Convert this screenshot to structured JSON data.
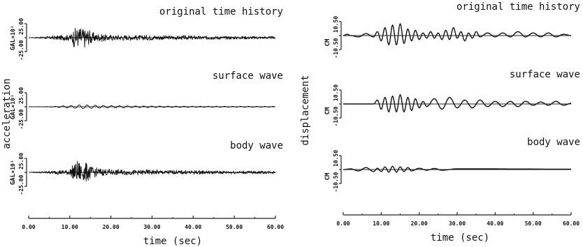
{
  "figure": {
    "left_ylabel": "acceleration",
    "right_ylabel": "displacement",
    "xlabel": "time (sec)"
  },
  "chart_data": [
    {
      "type": "line",
      "column": "left",
      "title": "original time history",
      "ylabel": "GAL",
      "yscale_label": "×10¹",
      "y_ticks": [
        "25.00",
        "-25.00"
      ],
      "ylim": [
        -25,
        25
      ],
      "x_ticks": [
        "0.00",
        "10.00",
        "20.00",
        "30.00",
        "40.00",
        "50.00",
        "60.00"
      ],
      "xlim": [
        0,
        60
      ],
      "xlabel": "time (sec)",
      "series": [
        {
          "values": [
            [
              0,
              0
            ],
            [
              5,
              3
            ],
            [
              10,
              6
            ],
            [
              11,
              18
            ],
            [
              12,
              22
            ],
            [
              13,
              20
            ],
            [
              14,
              19
            ],
            [
              15,
              14
            ],
            [
              16,
              9
            ],
            [
              18,
              7
            ],
            [
              20,
              6
            ],
            [
              25,
              5
            ],
            [
              30,
              5
            ],
            [
              35,
              4
            ],
            [
              40,
              4
            ],
            [
              45,
              3.5
            ],
            [
              50,
              3
            ],
            [
              55,
              3
            ],
            [
              60,
              2.5
            ]
          ]
        }
      ]
    },
    {
      "type": "line",
      "column": "left",
      "title": "surface wave",
      "ylabel": "GAL",
      "yscale_label": "×10¹",
      "y_ticks": [
        "25.00",
        "-25.00"
      ],
      "ylim": [
        -25,
        25
      ],
      "x_ticks": [
        "0.00",
        "10.00",
        "20.00",
        "30.00",
        "40.00",
        "50.00",
        "60.00"
      ],
      "xlim": [
        0,
        60
      ],
      "xlabel": "time (sec)",
      "series": [
        {
          "values": [
            [
              0,
              0
            ],
            [
              6,
              0.5
            ],
            [
              8,
              1.5
            ],
            [
              10,
              2
            ],
            [
              12,
              3
            ],
            [
              13,
              3.5
            ],
            [
              15,
              3
            ],
            [
              17,
              2.5
            ],
            [
              20,
              2
            ],
            [
              25,
              1.5
            ],
            [
              30,
              1.2
            ],
            [
              40,
              1
            ],
            [
              50,
              0.8
            ],
            [
              60,
              0.7
            ]
          ]
        }
      ]
    },
    {
      "type": "line",
      "column": "left",
      "title": "body wave",
      "ylabel": "GAL",
      "yscale_label": "×10¹",
      "y_ticks": [
        "25.00",
        "-25.00"
      ],
      "ylim": [
        -25,
        25
      ],
      "x_ticks": [
        "0.00",
        "10.00",
        "20.00",
        "30.00",
        "40.00",
        "50.00",
        "60.00"
      ],
      "xlim": [
        0,
        60
      ],
      "xlabel": "time (sec)",
      "series": [
        {
          "values": [
            [
              0,
              0
            ],
            [
              5,
              3
            ],
            [
              10,
              6
            ],
            [
              11,
              18
            ],
            [
              12,
              21
            ],
            [
              13,
              20
            ],
            [
              14,
              19
            ],
            [
              15,
              14
            ],
            [
              16,
              9
            ],
            [
              18,
              7
            ],
            [
              20,
              6
            ],
            [
              25,
              5
            ],
            [
              30,
              5
            ],
            [
              35,
              4
            ],
            [
              40,
              4
            ],
            [
              45,
              3.5
            ],
            [
              50,
              3
            ],
            [
              55,
              3
            ],
            [
              60,
              2.5
            ]
          ]
        }
      ]
    },
    {
      "type": "line",
      "column": "right",
      "title": "original time history",
      "ylabel": "CM",
      "y_ticks": [
        "10.50",
        "-10.50"
      ],
      "ylim": [
        -10.5,
        10.5
      ],
      "x_ticks": [
        "0.00",
        "10.00",
        "20.00",
        "30.00",
        "40.00",
        "50.00",
        "60.00"
      ],
      "xlim": [
        0,
        60
      ],
      "xlabel": "time (sec)",
      "series": [
        {
          "values": [
            [
              0,
              0
            ],
            [
              1,
              1
            ],
            [
              2,
              0
            ],
            [
              4,
              -1
            ],
            [
              6,
              1.5
            ],
            [
              8,
              -1
            ],
            [
              9,
              3
            ],
            [
              10,
              -4
            ],
            [
              11,
              6
            ],
            [
              12,
              -7
            ],
            [
              13,
              8
            ],
            [
              14,
              -7
            ],
            [
              15,
              9
            ],
            [
              16,
              -6
            ],
            [
              17,
              5
            ],
            [
              18,
              -4
            ],
            [
              19,
              4
            ],
            [
              20,
              -3
            ],
            [
              21,
              2
            ],
            [
              22,
              -2
            ],
            [
              23,
              3
            ],
            [
              24,
              -2
            ],
            [
              25,
              2
            ],
            [
              26,
              -3
            ],
            [
              27,
              4
            ],
            [
              28,
              -3
            ],
            [
              29,
              6
            ],
            [
              30,
              -2
            ],
            [
              31,
              3
            ],
            [
              32,
              -4
            ],
            [
              33,
              2
            ],
            [
              34,
              -2
            ],
            [
              35,
              3
            ],
            [
              36,
              -1
            ],
            [
              38,
              2
            ],
            [
              40,
              -1
            ],
            [
              42,
              2
            ],
            [
              44,
              -1
            ],
            [
              46,
              3
            ],
            [
              48,
              -1
            ],
            [
              50,
              2
            ],
            [
              52,
              -1
            ],
            [
              54,
              2
            ],
            [
              56,
              -1
            ],
            [
              58,
              1
            ],
            [
              60,
              0
            ]
          ]
        }
      ]
    },
    {
      "type": "line",
      "column": "right",
      "title": "surface wave",
      "ylabel": "CM",
      "y_ticks": [
        "10.50",
        "-10.50"
      ],
      "ylim": [
        -10.5,
        10.5
      ],
      "x_ticks": [
        "0.00",
        "10.00",
        "20.00",
        "30.00",
        "40.00",
        "50.00",
        "60.00"
      ],
      "xlim": [
        0,
        60
      ],
      "xlabel": "time (sec)",
      "series": [
        {
          "values": [
            [
              0,
              0
            ],
            [
              8,
              0
            ],
            [
              9,
              3
            ],
            [
              10,
              -4
            ],
            [
              11,
              5
            ],
            [
              12,
              -6
            ],
            [
              13,
              6
            ],
            [
              14,
              -6
            ],
            [
              15,
              7
            ],
            [
              16,
              -6
            ],
            [
              17,
              5
            ],
            [
              18,
              -5
            ],
            [
              19,
              4
            ],
            [
              20,
              -3
            ],
            [
              21,
              2
            ],
            [
              22,
              -2
            ],
            [
              24,
              4
            ],
            [
              26,
              -4
            ],
            [
              28,
              5
            ],
            [
              30,
              -3
            ],
            [
              32,
              3
            ],
            [
              34,
              -3
            ],
            [
              36,
              3
            ],
            [
              38,
              -2
            ],
            [
              40,
              2
            ],
            [
              42,
              -2
            ],
            [
              44,
              2
            ],
            [
              46,
              -2
            ],
            [
              48,
              2
            ],
            [
              50,
              -1
            ],
            [
              52,
              1.5
            ],
            [
              54,
              -1
            ],
            [
              56,
              2
            ],
            [
              58,
              -1
            ],
            [
              60,
              0.5
            ]
          ]
        }
      ]
    },
    {
      "type": "line",
      "column": "right",
      "title": "body wave",
      "ylabel": "CM",
      "y_ticks": [
        "10.50",
        "-10.50"
      ],
      "ylim": [
        -10.5,
        10.5
      ],
      "x_ticks": [
        "0.00",
        "10.00",
        "20.00",
        "30.00",
        "40.00",
        "50.00",
        "60.00"
      ],
      "xlim": [
        0,
        60
      ],
      "xlabel": "time (sec)",
      "series": [
        {
          "values": [
            [
              0,
              0
            ],
            [
              2,
              0.5
            ],
            [
              4,
              -1
            ],
            [
              6,
              1.5
            ],
            [
              8,
              -1.5
            ],
            [
              9,
              1
            ],
            [
              10,
              -1.5
            ],
            [
              11,
              2
            ],
            [
              12,
              -2
            ],
            [
              13,
              2.5
            ],
            [
              14,
              -2
            ],
            [
              15,
              2
            ],
            [
              16,
              -1.5
            ],
            [
              17,
              1.5
            ],
            [
              18,
              -1
            ],
            [
              20,
              1
            ],
            [
              22,
              -0.5
            ],
            [
              24,
              0.8
            ],
            [
              26,
              -0.5
            ],
            [
              30,
              0.6
            ],
            [
              35,
              0.5
            ],
            [
              40,
              0.5
            ],
            [
              45,
              0.4
            ],
            [
              50,
              0.4
            ],
            [
              55,
              0.3
            ],
            [
              60,
              0.3
            ]
          ]
        }
      ]
    }
  ]
}
